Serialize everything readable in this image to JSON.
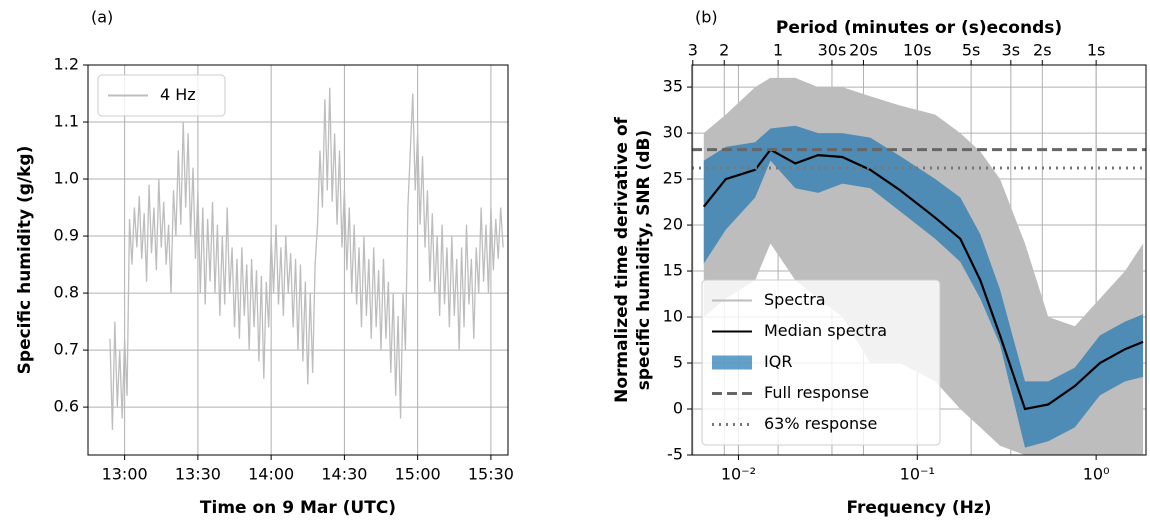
{
  "chart_data": [
    {
      "type": "line",
      "annotation": "(a)",
      "xlabel": "Time on 9 Mar (UTC)",
      "ylabel": "Specific humidity (g/kg)",
      "x": [
        "12:54",
        "12:55",
        "12:56",
        "12:57",
        "12:58",
        "12:59",
        "13:00",
        "13:01",
        "13:02",
        "13:03",
        "13:04",
        "13:05",
        "13:06",
        "13:07",
        "13:08",
        "13:09",
        "13:10",
        "13:11",
        "13:12",
        "13:13",
        "13:14",
        "13:15",
        "13:16",
        "13:17",
        "13:18",
        "13:19",
        "13:20",
        "13:21",
        "13:22",
        "13:23",
        "13:24",
        "13:25",
        "13:26",
        "13:27",
        "13:28",
        "13:29",
        "13:30",
        "13:31",
        "13:32",
        "13:33",
        "13:34",
        "13:35",
        "13:36",
        "13:37",
        "13:38",
        "13:39",
        "13:40",
        "13:41",
        "13:42",
        "13:43",
        "13:44",
        "13:45",
        "13:46",
        "13:47",
        "13:48",
        "13:49",
        "13:50",
        "13:51",
        "13:52",
        "13:53",
        "13:54",
        "13:55",
        "13:56",
        "13:57",
        "13:58",
        "13:59",
        "14:00",
        "14:01",
        "14:02",
        "14:03",
        "14:04",
        "14:05",
        "14:06",
        "14:07",
        "14:08",
        "14:09",
        "14:10",
        "14:11",
        "14:12",
        "14:13",
        "14:14",
        "14:15",
        "14:16",
        "14:17",
        "14:18",
        "14:19",
        "14:20",
        "14:21",
        "14:22",
        "14:23",
        "14:24",
        "14:25",
        "14:26",
        "14:27",
        "14:28",
        "14:29",
        "14:30",
        "14:31",
        "14:32",
        "14:33",
        "14:34",
        "14:35",
        "14:36",
        "14:37",
        "14:38",
        "14:39",
        "14:40",
        "14:41",
        "14:42",
        "14:43",
        "14:44",
        "14:45",
        "14:46",
        "14:47",
        "14:48",
        "14:49",
        "14:50",
        "14:51",
        "14:52",
        "14:53",
        "14:54",
        "14:55",
        "14:56",
        "14:57",
        "14:58",
        "14:59",
        "15:00",
        "15:01",
        "15:02",
        "15:03",
        "15:04",
        "15:05",
        "15:06",
        "15:07",
        "15:08",
        "15:09",
        "15:10",
        "15:11",
        "15:12",
        "15:13",
        "15:14",
        "15:15",
        "15:16",
        "15:17",
        "15:18",
        "15:19",
        "15:20",
        "15:21",
        "15:22",
        "15:23",
        "15:24",
        "15:25",
        "15:26",
        "15:27",
        "15:28",
        "15:29",
        "15:30",
        "15:31",
        "15:32",
        "15:33",
        "15:34",
        "15:35"
      ],
      "series": [
        {
          "name": "4 Hz",
          "color": "#bdbdbd",
          "values": [
            0.72,
            0.56,
            0.75,
            0.6,
            0.7,
            0.58,
            0.72,
            0.62,
            0.93,
            0.85,
            0.95,
            0.88,
            0.97,
            0.86,
            0.94,
            0.82,
            0.99,
            0.87,
            0.95,
            0.84,
            1.0,
            0.88,
            0.96,
            0.85,
            0.92,
            0.8,
            0.98,
            0.9,
            1.05,
            0.92,
            1.1,
            0.95,
            1.08,
            0.9,
            1.02,
            0.86,
            0.98,
            0.8,
            0.95,
            0.78,
            0.93,
            0.82,
            0.96,
            0.8,
            0.92,
            0.76,
            0.9,
            0.78,
            0.95,
            0.8,
            0.88,
            0.74,
            0.86,
            0.72,
            0.88,
            0.76,
            0.85,
            0.7,
            0.86,
            0.74,
            0.84,
            0.68,
            0.83,
            0.65,
            0.82,
            0.74,
            0.9,
            0.8,
            0.92,
            0.78,
            0.88,
            0.76,
            0.9,
            0.8,
            0.87,
            0.74,
            0.86,
            0.7,
            0.85,
            0.68,
            0.82,
            0.64,
            0.8,
            0.66,
            0.85,
            0.92,
            1.05,
            0.95,
            1.14,
            0.98,
            1.16,
            0.96,
            1.08,
            0.92,
            1.05,
            0.88,
            0.98,
            0.84,
            0.95,
            0.8,
            0.92,
            0.78,
            0.88,
            0.74,
            0.9,
            0.76,
            0.86,
            0.72,
            0.88,
            0.74,
            0.84,
            0.7,
            0.86,
            0.72,
            0.82,
            0.66,
            0.8,
            0.62,
            0.76,
            0.58,
            0.8,
            0.7,
            0.95,
            1.05,
            1.15,
            0.98,
            1.08,
            0.92,
            1.04,
            0.88,
            0.98,
            0.82,
            0.94,
            0.8,
            0.9,
            0.76,
            0.92,
            0.78,
            0.88,
            0.74,
            0.9,
            0.76,
            0.86,
            0.7,
            0.88,
            0.74,
            0.92,
            0.78,
            0.86,
            0.72,
            0.88,
            0.8,
            0.95,
            0.82,
            0.92,
            0.8,
            0.95,
            0.84,
            0.93,
            0.86,
            0.95,
            0.88
          ]
        }
      ],
      "xlim": [
        "12:45",
        "15:37"
      ],
      "xticks": [
        "13:00",
        "13:30",
        "14:00",
        "14:30",
        "15:00",
        "15:30"
      ],
      "ylim": [
        0.516,
        1.2
      ],
      "yticks": [
        0.6,
        0.7,
        0.8,
        0.9,
        {
          "value": 1.0,
          "label": "1.0"
        },
        1.1,
        1.2
      ],
      "grid": true,
      "legend": "upper left"
    },
    {
      "type": "line",
      "annotation": "(b)",
      "xlabel": "Frequency (Hz)",
      "x2label": "Period (minutes or (s)econds)",
      "ylabel": [
        "Normalized time derivative of",
        "specific humidity, SNR (dB)"
      ],
      "xscale": "log",
      "x": [
        0.0064,
        0.0085,
        0.0124,
        0.0151,
        0.0208,
        0.0279,
        0.0381,
        0.0546,
        0.08,
        0.126,
        0.174,
        0.225,
        0.29,
        0.4,
        0.54,
        0.76,
        1.05,
        1.45,
        1.83
      ],
      "series": [
        {
          "name": "Spectra",
          "color": "#bdbdbd",
          "lower": [
            10,
            12,
            14,
            18,
            14,
            12,
            10,
            5,
            5,
            3,
            0,
            -2,
            -4,
            -5,
            -5,
            -5,
            -5,
            -5,
            -5
          ],
          "upper": [
            30,
            32,
            35,
            36,
            36,
            35,
            35,
            34,
            33,
            32,
            30,
            28,
            25,
            18,
            10,
            9,
            12,
            15,
            18
          ]
        },
        {
          "name": "Median spectra",
          "color": "#000000",
          "values": [
            22,
            25,
            26,
            28.2,
            26.7,
            27.6,
            27.4,
            26,
            23.8,
            20.8,
            18.5,
            14,
            8,
            0,
            0.5,
            2.5,
            5,
            6.5,
            7.3
          ]
        },
        {
          "name": "IQR",
          "color": "#1f77b4",
          "alpha": 0.7,
          "lower": [
            15.8,
            19.5,
            23,
            27,
            24,
            23.5,
            24.5,
            24,
            21.5,
            18.5,
            16,
            12,
            7,
            -4.2,
            -3.5,
            -2,
            1.5,
            3,
            3.5
          ],
          "upper": [
            27,
            28.5,
            29,
            30.5,
            30.8,
            30,
            30,
            29.5,
            27.5,
            25,
            23,
            19,
            13,
            3,
            3,
            4.5,
            8,
            9.5,
            10.3
          ]
        },
        {
          "name": "Full response",
          "color": "#666666",
          "line": "dashed",
          "value": 28.2
        },
        {
          "name": "63% response",
          "color": "#777777",
          "line": "dotted",
          "value": 26.2
        }
      ],
      "xlim": [
        0.0055,
        1.9
      ],
      "xticks": [
        {
          "value": 0.01,
          "label": "10⁻²"
        },
        {
          "value": 0.1,
          "label": "10⁻¹"
        },
        {
          "value": 1,
          "label": "10⁰"
        }
      ],
      "x2ticks": [
        {
          "value": 0.005556,
          "label": "3"
        },
        {
          "value": 0.008333,
          "label": "2"
        },
        {
          "value": 0.016667,
          "label": "1"
        },
        {
          "value": 0.033333,
          "label": "30s"
        },
        {
          "value": 0.05,
          "label": "20s"
        },
        {
          "value": 0.1,
          "label": "10s"
        },
        {
          "value": 0.2,
          "label": "5s"
        },
        {
          "value": 0.333333,
          "label": "3s"
        },
        {
          "value": 0.5,
          "label": "2s"
        },
        {
          "value": 1,
          "label": "1s"
        }
      ],
      "ylim": [
        -5,
        37.4
      ],
      "yticks": [
        -5,
        0,
        5,
        10,
        15,
        20,
        25,
        30,
        35
      ],
      "grid": true,
      "legend": "lower left"
    }
  ]
}
